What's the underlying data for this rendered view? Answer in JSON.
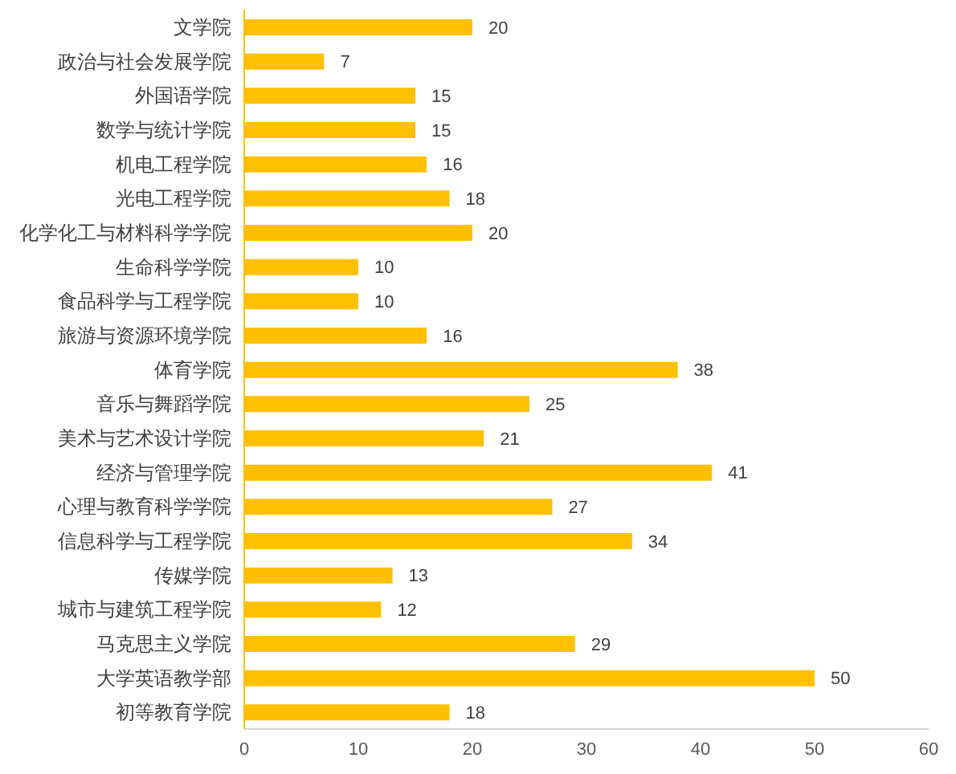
{
  "chart_data": {
    "type": "bar",
    "orientation": "horizontal",
    "categories": [
      "文学院",
      "政治与社会发展学院",
      "外国语学院",
      "数学与统计学院",
      "机电工程学院",
      "光电工程学院",
      "化学化工与材料科学学院",
      "生命科学学院",
      "食品科学与工程学院",
      "旅游与资源环境学院",
      "体育学院",
      "音乐与舞蹈学院",
      "美术与艺术设计学院",
      "经济与管理学院",
      "心理与教育科学学院",
      "信息科学与工程学院",
      "传媒学院",
      "城市与建筑工程学院",
      "马克思主义学院",
      "大学英语教学部",
      "初等教育学院"
    ],
    "values": [
      20,
      7,
      15,
      15,
      16,
      18,
      20,
      10,
      10,
      16,
      38,
      25,
      21,
      41,
      27,
      34,
      13,
      12,
      29,
      50,
      18
    ],
    "color": "#ffc000",
    "xlim": [
      0,
      60
    ],
    "xticks": [
      0,
      10,
      20,
      30,
      40,
      50,
      60
    ],
    "data_labels": true,
    "grid": false,
    "legend": false
  }
}
